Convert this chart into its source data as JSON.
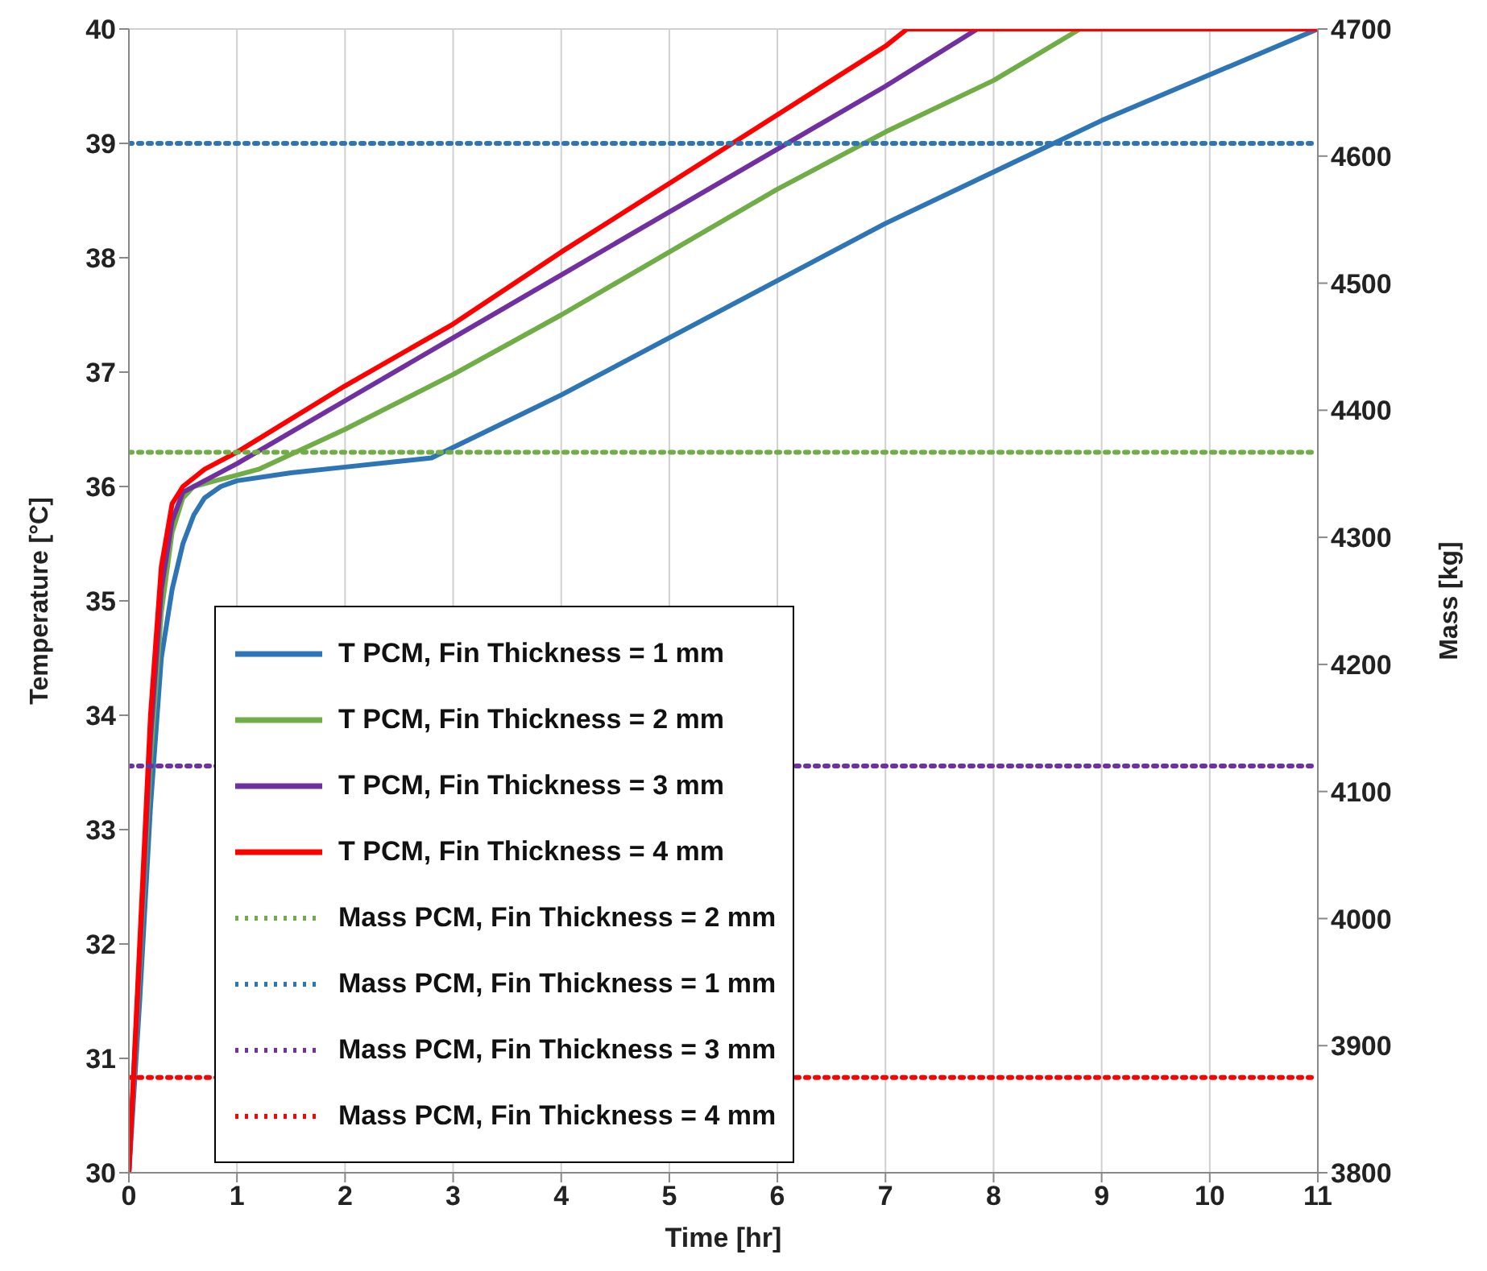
{
  "chart_data": {
    "type": "line",
    "xlabel": "Time [hr]",
    "ylabel": "Temperature [°C]",
    "y2label": "Mass [kg]",
    "xlim": [
      0,
      11
    ],
    "xticks": [
      0,
      1,
      2,
      3,
      4,
      5,
      6,
      7,
      8,
      9,
      10,
      11
    ],
    "ylim": [
      30,
      40
    ],
    "yticks": [
      30,
      31,
      32,
      33,
      34,
      35,
      36,
      37,
      38,
      39,
      40
    ],
    "y2lim": [
      3800,
      4700
    ],
    "y2ticks": [
      3800,
      3900,
      4000,
      4100,
      4200,
      4300,
      4400,
      4500,
      4600,
      4700
    ],
    "grid": true,
    "legend": "bottom left",
    "marker": "none",
    "series": [
      {
        "name": "T PCM, Fin Thickness = 1 mm",
        "color": "#2e75b6",
        "line_style": "solid",
        "x": [
          0,
          0.1,
          0.2,
          0.3,
          0.4,
          0.5,
          0.6,
          0.7,
          0.85,
          1,
          1.5,
          2,
          2.5,
          2.8,
          4,
          5,
          6,
          7,
          8,
          9,
          10,
          11
        ],
        "values": [
          30,
          31.5,
          33.2,
          34.5,
          35.1,
          35.5,
          35.75,
          35.9,
          36.0,
          36.05,
          36.12,
          36.17,
          36.22,
          36.25,
          36.8,
          37.3,
          37.8,
          38.3,
          38.75,
          39.2,
          39.6,
          40
        ]
      },
      {
        "name": "T PCM, Fin Thickness = 2 mm",
        "color": "#70ad47",
        "line_style": "solid",
        "x": [
          0,
          0.1,
          0.2,
          0.3,
          0.4,
          0.5,
          0.6,
          0.8,
          1,
          1.2,
          2,
          3,
          4,
          5,
          6,
          7,
          8,
          8.8
        ],
        "values": [
          30,
          31.8,
          33.6,
          34.9,
          35.6,
          35.9,
          36.0,
          36.05,
          36.1,
          36.15,
          36.5,
          36.98,
          37.5,
          38.05,
          38.6,
          39.1,
          39.55,
          40
        ]
      },
      {
        "name": "T PCM, Fin Thickness = 3 mm",
        "color": "#7030a0",
        "line_style": "solid",
        "x": [
          0,
          0.1,
          0.2,
          0.3,
          0.4,
          0.5,
          0.7,
          1,
          2,
          3,
          4,
          5,
          6,
          7,
          7.85
        ],
        "values": [
          30,
          31.9,
          33.8,
          35.1,
          35.7,
          35.95,
          36.05,
          36.2,
          36.75,
          37.3,
          37.85,
          38.4,
          38.95,
          39.5,
          40
        ]
      },
      {
        "name": "T PCM, Fin Thickness = 4 mm",
        "color": "#ff0000",
        "line_style": "solid",
        "x": [
          0,
          0.1,
          0.2,
          0.3,
          0.4,
          0.5,
          0.7,
          1,
          2,
          3,
          4,
          5,
          6,
          7,
          7.2,
          11
        ],
        "values": [
          30,
          32,
          34,
          35.3,
          35.85,
          36.0,
          36.15,
          36.3,
          36.88,
          37.42,
          38.05,
          38.65,
          39.25,
          39.85,
          40,
          40
        ]
      },
      {
        "name": "Mass PCM, Fin Thickness = 2 mm",
        "color": "#70ad47",
        "line_style": "dotted",
        "type": "line",
        "axis": "y2",
        "x": [
          0,
          11
        ],
        "values": [
          4367,
          4367
        ]
      },
      {
        "name": "Mass PCM, Fin Thickness = 1 mm",
        "color": "#2e75b6",
        "line_style": "dotted",
        "type": "line",
        "axis": "y2",
        "x": [
          0,
          11
        ],
        "values": [
          4610,
          4610
        ]
      },
      {
        "name": "Mass PCM, Fin Thickness = 3 mm",
        "color": "#7030a0",
        "line_style": "dotted",
        "type": "line",
        "axis": "y2",
        "x": [
          0,
          11
        ],
        "values": [
          4120,
          4120
        ]
      },
      {
        "name": "Mass PCM, Fin Thickness = 4 mm",
        "color": "#ff0000",
        "line_style": "dotted",
        "type": "line",
        "axis": "y2",
        "x": [
          0,
          11
        ],
        "values": [
          3875,
          3875
        ]
      }
    ]
  }
}
